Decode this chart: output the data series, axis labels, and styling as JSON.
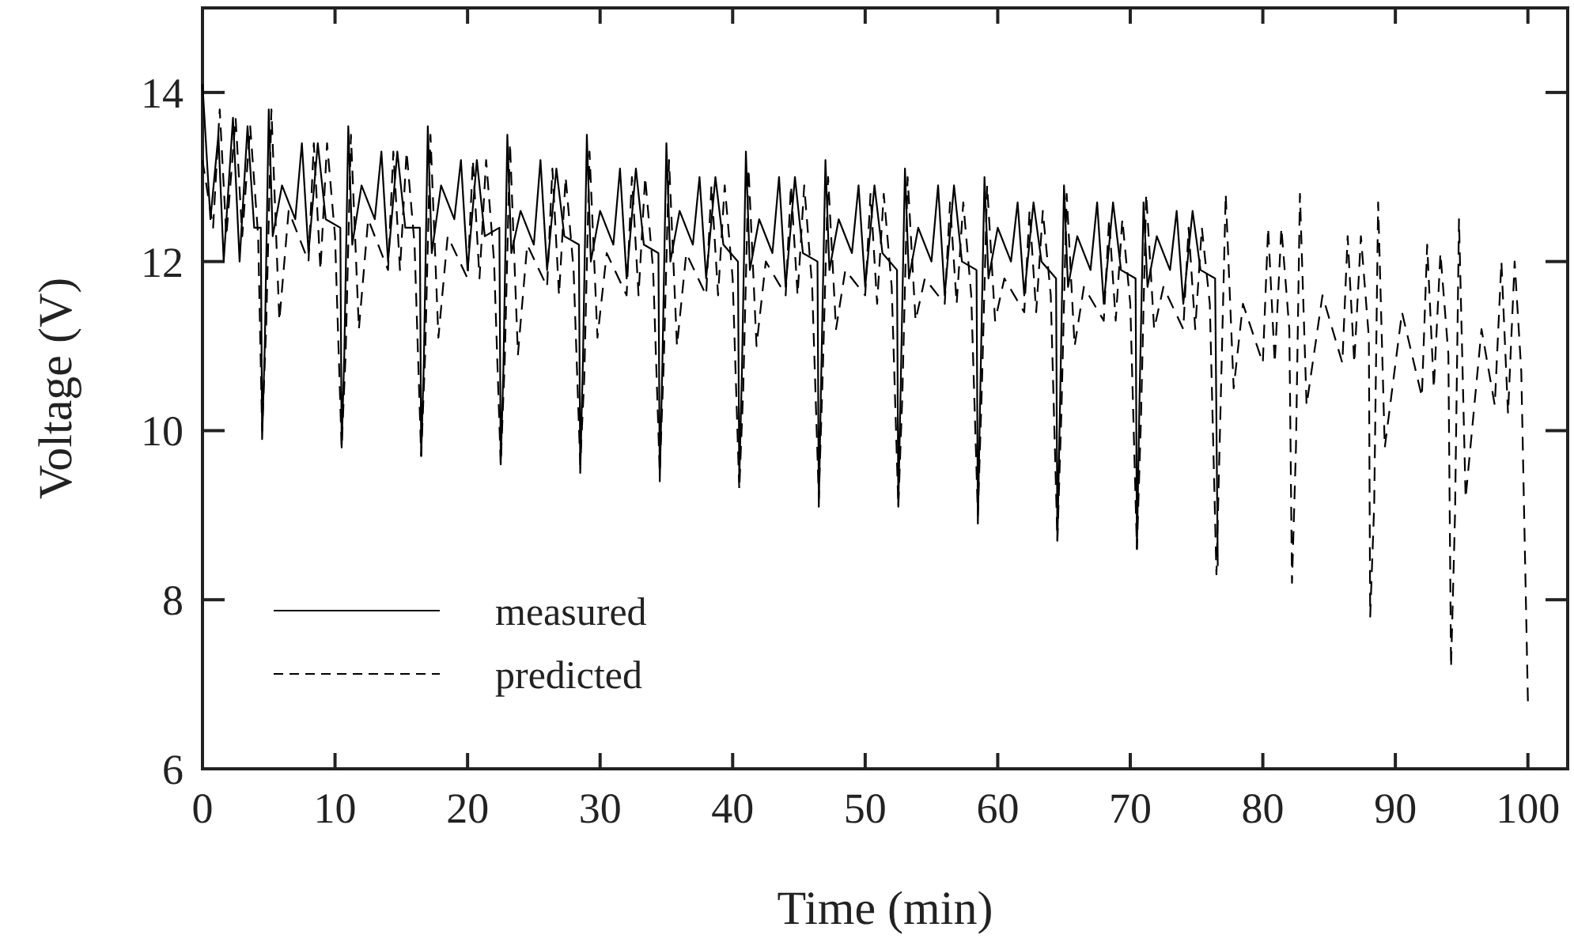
{
  "chart_data": {
    "type": "line",
    "xlabel": "Time (min)",
    "ylabel": "Voltage (V)",
    "xlim": [
      0,
      103
    ],
    "ylim": [
      6,
      15
    ],
    "xticks": [
      0,
      10,
      20,
      30,
      40,
      50,
      60,
      70,
      80,
      90,
      100
    ],
    "yticks": [
      6,
      8,
      10,
      12,
      14
    ],
    "grid": false,
    "legend": "bottom left",
    "series": [
      {
        "name": "measured",
        "color": "#000000",
        "line_style": "solid",
        "x": [
          0,
          0.6,
          1.2,
          1.6,
          2.3,
          2.8,
          3.4,
          3.9,
          4.4,
          4.5,
          4.7,
          5.0,
          5.3,
          6.0,
          7.0,
          7.5,
          8.0,
          8.7,
          9.3,
          10.4,
          10.5,
          10.7,
          11.0,
          11.3,
          12.0,
          13.0,
          13.5,
          14.0,
          14.7,
          15.3,
          16.4,
          16.5,
          16.7,
          17.0,
          17.3,
          18.0,
          19.0,
          19.5,
          20.0,
          20.7,
          21.3,
          22.4,
          22.5,
          22.7,
          23.0,
          23.3,
          24.0,
          25.0,
          25.5,
          26.0,
          26.7,
          27.3,
          28.4,
          28.5,
          28.7,
          29.0,
          29.3,
          30.0,
          31.0,
          31.5,
          32.0,
          32.7,
          33.3,
          34.4,
          34.5,
          34.7,
          35.0,
          35.3,
          36.0,
          37.0,
          37.5,
          38.0,
          38.7,
          39.3,
          40.4,
          40.5,
          40.7,
          41.0,
          41.3,
          42.0,
          43.0,
          43.5,
          44.0,
          44.7,
          45.3,
          46.4,
          46.5,
          46.7,
          47.0,
          47.3,
          48.0,
          49.0,
          49.5,
          50.0,
          50.7,
          51.3,
          52.4,
          52.5,
          52.7,
          53.0,
          53.3,
          54.0,
          55.0,
          55.5,
          56.0,
          56.7,
          57.3,
          58.4,
          58.5,
          58.7,
          59.0,
          59.3,
          60.0,
          61.0,
          61.5,
          62.0,
          62.7,
          63.3,
          64.4,
          64.5,
          64.7,
          65.0,
          65.3,
          66.0,
          67.0,
          67.5,
          68.0,
          68.7,
          69.3,
          70.4,
          70.5,
          70.7,
          71.0,
          71.3,
          72.0,
          73.0,
          73.5,
          74.0,
          74.7,
          75.3,
          76.4,
          76.6
        ],
        "values": [
          14.1,
          12.5,
          13.5,
          12.0,
          13.7,
          12.0,
          13.6,
          12.4,
          12.4,
          9.9,
          11.0,
          13.8,
          12.3,
          12.9,
          12.5,
          13.4,
          12.1,
          13.4,
          12.5,
          12.4,
          9.8,
          10.9,
          13.6,
          12.2,
          12.9,
          12.5,
          13.3,
          12.0,
          13.3,
          12.4,
          12.4,
          9.7,
          10.8,
          13.6,
          12.1,
          12.9,
          12.5,
          13.2,
          11.9,
          13.2,
          12.3,
          12.4,
          9.6,
          10.7,
          13.5,
          12.1,
          12.6,
          12.2,
          13.2,
          11.9,
          13.1,
          12.3,
          12.2,
          9.5,
          10.8,
          13.5,
          12.0,
          12.6,
          12.2,
          13.1,
          11.8,
          13.1,
          12.2,
          12.1,
          9.4,
          10.8,
          13.4,
          12.0,
          12.6,
          12.2,
          13.0,
          11.8,
          13.0,
          12.2,
          12.0,
          9.4,
          10.7,
          13.3,
          11.9,
          12.5,
          12.1,
          13.0,
          11.7,
          13.0,
          12.1,
          12.0,
          9.1,
          10.8,
          13.2,
          11.9,
          12.5,
          12.1,
          12.9,
          11.7,
          12.9,
          12.1,
          11.9,
          9.1,
          10.7,
          13.1,
          11.8,
          12.4,
          12.0,
          12.9,
          11.6,
          12.9,
          12.0,
          11.9,
          8.9,
          10.6,
          13.0,
          11.8,
          12.4,
          12.0,
          12.7,
          11.6,
          12.7,
          12.0,
          11.8,
          8.7,
          10.3,
          12.9,
          11.7,
          12.3,
          11.9,
          12.7,
          11.5,
          12.7,
          11.9,
          11.8,
          8.6,
          10.4,
          12.7,
          11.7,
          12.3,
          11.9,
          12.6,
          11.5,
          12.6,
          11.9,
          11.8,
          8.4
        ]
      },
      {
        "name": "predicted",
        "color": "#000000",
        "line_style": "dashed",
        "x": [
          0,
          0.8,
          1.3,
          1.8,
          2.5,
          3.0,
          3.6,
          4.2,
          4.5,
          4.8,
          5.2,
          5.8,
          6.5,
          8.0,
          8.4,
          8.9,
          9.4,
          10.0,
          10.5,
          10.8,
          11.2,
          11.8,
          12.5,
          14.0,
          14.4,
          14.9,
          15.4,
          16.0,
          16.5,
          16.8,
          17.2,
          17.8,
          18.5,
          20.0,
          20.4,
          20.9,
          21.4,
          22.0,
          22.5,
          22.8,
          23.2,
          23.8,
          24.5,
          26.0,
          26.4,
          26.9,
          27.4,
          28.0,
          28.5,
          28.8,
          29.2,
          29.8,
          30.5,
          32.0,
          32.4,
          32.9,
          33.4,
          34.0,
          34.5,
          34.8,
          35.2,
          35.8,
          36.5,
          38.0,
          38.4,
          38.9,
          39.4,
          40.0,
          40.5,
          40.8,
          41.2,
          41.8,
          42.5,
          44.0,
          44.4,
          44.9,
          45.4,
          46.0,
          46.5,
          46.8,
          47.2,
          47.8,
          48.5,
          50.0,
          50.4,
          50.9,
          51.4,
          52.0,
          52.5,
          52.8,
          53.2,
          53.8,
          54.5,
          56.0,
          56.4,
          56.9,
          57.4,
          58.0,
          58.5,
          58.8,
          59.2,
          59.8,
          60.5,
          62.0,
          62.4,
          62.9,
          63.4,
          64.0,
          64.5,
          64.8,
          65.2,
          65.8,
          66.5,
          68.0,
          68.4,
          68.9,
          69.4,
          70.0,
          70.5,
          70.8,
          71.2,
          71.8,
          72.5,
          74.0,
          74.4,
          74.9,
          75.4,
          76.0,
          76.5,
          76.8,
          77.2,
          77.8,
          78.5,
          80.0,
          80.4,
          80.9,
          81.4,
          82.0,
          82.2,
          82.5,
          82.8,
          83.3,
          84.5,
          86.0,
          86.4,
          86.9,
          87.4,
          88.0,
          88.1,
          88.4,
          88.7,
          89.2,
          90.5,
          92.0,
          92.4,
          92.9,
          93.4,
          94.0,
          94.2,
          94.5,
          94.8,
          95.3,
          96.5,
          97.5,
          98.0,
          98.5,
          99.0,
          99.5,
          100
        ],
        "values": [
          13.2,
          12.4,
          13.8,
          12.3,
          13.7,
          12.3,
          13.6,
          12.3,
          10.0,
          11.2,
          13.8,
          11.3,
          12.6,
          12.0,
          13.4,
          11.9,
          13.4,
          12.3,
          9.8,
          10.9,
          13.5,
          11.2,
          12.5,
          11.9,
          13.3,
          11.9,
          13.3,
          12.2,
          9.7,
          10.9,
          13.5,
          11.1,
          12.3,
          11.8,
          13.2,
          11.8,
          13.2,
          12.0,
          9.6,
          10.8,
          13.4,
          10.9,
          12.2,
          11.7,
          13.1,
          11.6,
          13.0,
          11.9,
          9.6,
          10.6,
          13.3,
          11.1,
          12.1,
          11.6,
          13.0,
          11.6,
          13.0,
          11.9,
          9.5,
          10.8,
          13.2,
          11.0,
          12.1,
          11.6,
          12.9,
          11.6,
          12.9,
          11.8,
          9.3,
          10.5,
          13.1,
          11.0,
          12.0,
          11.6,
          12.9,
          11.6,
          12.9,
          11.7,
          9.2,
          10.7,
          13.0,
          11.2,
          11.9,
          11.6,
          12.8,
          11.5,
          12.8,
          11.7,
          9.1,
          10.4,
          13.0,
          11.3,
          11.8,
          11.5,
          12.7,
          11.5,
          12.7,
          11.6,
          9.0,
          10.5,
          12.9,
          11.3,
          11.8,
          11.4,
          12.6,
          11.4,
          12.6,
          11.6,
          8.7,
          10.2,
          12.8,
          11.0,
          11.7,
          11.3,
          12.5,
          11.3,
          12.5,
          11.5,
          8.6,
          10.1,
          12.8,
          11.2,
          11.7,
          11.2,
          12.4,
          11.2,
          12.4,
          11.5,
          8.3,
          10.2,
          12.8,
          10.5,
          11.5,
          10.8,
          12.4,
          10.8,
          12.4,
          11.2,
          8.2,
          9.8,
          12.8,
          10.3,
          11.6,
          10.8,
          12.3,
          10.8,
          12.3,
          11.1,
          7.8,
          9.1,
          12.7,
          9.8,
          11.4,
          10.4,
          12.2,
          10.5,
          12.1,
          10.9,
          7.2,
          9.0,
          12.5,
          9.2,
          11.2,
          10.3,
          12.0,
          10.2,
          12.0,
          10.7,
          6.8
        ]
      }
    ]
  }
}
